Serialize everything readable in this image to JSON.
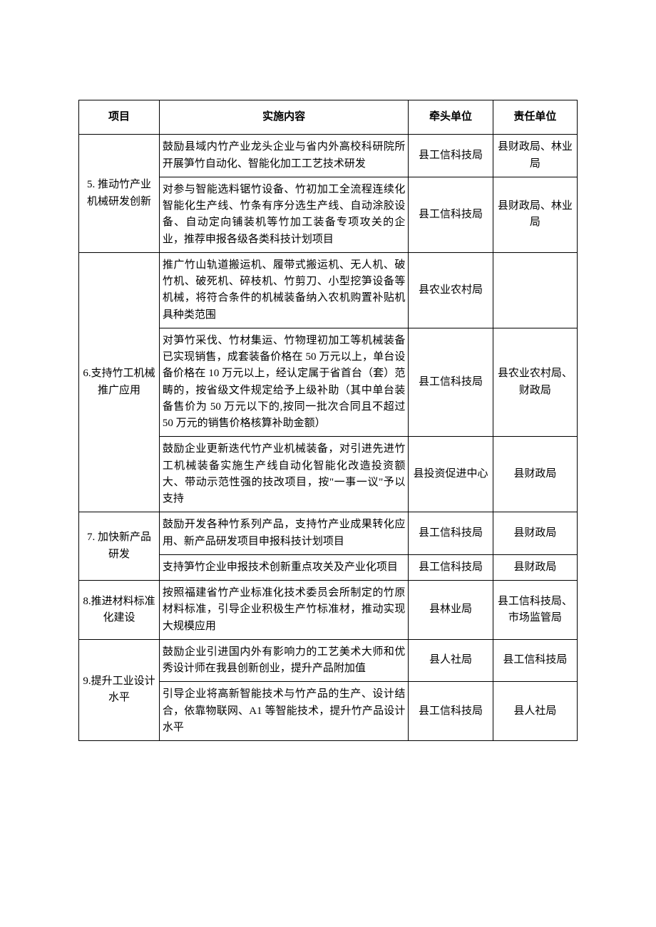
{
  "headers": {
    "project": "项目",
    "content": "实施内容",
    "lead": "牵头单位",
    "resp": "责任单位"
  },
  "groups": [
    {
      "project": "5. 推动竹产业机械研发创新",
      "rows": [
        {
          "content": "鼓励县域内竹产业龙头企业与省内外高校科研院所开展笋竹自动化、智能化加工工艺技术研发",
          "lead": "县工信科技局",
          "resp": "县财政局、林业局"
        },
        {
          "content": "对参与智能选料锯竹设备、竹初加工全流程连续化智能化生产线、竹条有序分选生产线、自动涂胶设备、自动定向铺装机等竹加工装备专项攻关的企业，推荐申报各级各类科技计划项目",
          "lead": "县工信科技局",
          "resp": "县财政局、林业局"
        }
      ]
    },
    {
      "project": "6.支持竹工机械推广应用",
      "rows": [
        {
          "content": "推广竹山轨道搬运机、履带式搬运机、无人机、破竹机、破死机、碎枝机、竹剪刀、小型挖笋设备等机械，将符合条件的机械装备纳入农机购置补贴机具种类范围",
          "lead": "县农业农村局",
          "resp": ""
        },
        {
          "content": "对笋竹采伐、竹材集运、竹物理初加工等机械装备已实现销售，成套装备价格在 50 万元以上，单台设备价格在 10 万元以上，经认定属于省首台（套）范畴的，按省级文件规定给予上级补助（其中单台装备售价为 50 万元以下的,按同一批次合同且不超过 50 万元的销售价格核算补助金额）",
          "lead": "县工信科技局",
          "resp": "县农业农村局、财政局"
        },
        {
          "content": "鼓励企业更新迭代竹产业机械装备，对引进先进竹工机械装备实施生产线自动化智能化改造投资额大、带动示范性强的技改项目，按\"一事一议\"予以支持",
          "lead": "县投资促进中心",
          "resp": "县财政局"
        }
      ]
    },
    {
      "project": "7. 加快新产品研发",
      "rows": [
        {
          "content": "鼓励开发各种竹系列产品，支持竹产业成果转化应用、新产品研发项目申报科技计划项目",
          "lead": "县工信科技局",
          "resp": "县财政局"
        },
        {
          "content": "支持笋竹企业申报技术创新重点攻关及产业化项目",
          "lead": "县工信科技局",
          "resp": "县财政局"
        }
      ]
    },
    {
      "project": "8.推进材料标准化建设",
      "rows": [
        {
          "content": "按照福建省竹产业标准化技术委员会所制定的竹原材料标准，引导企业积极生产竹标准材，推动实现大规模应用",
          "lead": "县林业局",
          "resp": "县工信科技局、市场监管局"
        }
      ]
    },
    {
      "project": "9.提升工业设计水平",
      "rows": [
        {
          "content": "鼓励企业引进国内外有影响力的工艺美术大师和优秀设计师在我县创新创业，提升产品附加值",
          "lead": "县人社局",
          "resp": "县工信科技局"
        },
        {
          "content": "引导企业将高新智能技术与竹产品的生产、设计结合，依靠物联网、A1 等智能技术，提升竹产品设计水平",
          "lead": "县工信科技局",
          "resp": "县人社局"
        }
      ]
    }
  ]
}
